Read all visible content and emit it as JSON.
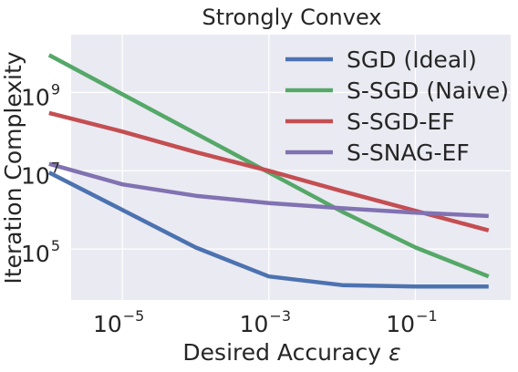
{
  "chart_data": {
    "type": "line",
    "title": "Strongly Convex",
    "xlabel": "Desired Accuracy",
    "xlabel_symbol": "ε",
    "ylabel": "Iteration Complexity",
    "xscale": "log",
    "yscale": "log",
    "xlim": [
      2e-06,
      2
    ],
    "ylim": [
      5000,
      30000000000
    ],
    "grid": true,
    "legend_position": "top-right",
    "x": [
      1e-06,
      1e-05,
      0.0001,
      0.001,
      0.01,
      0.1,
      1
    ],
    "xticks": [
      {
        "base": "10",
        "exp": "−5",
        "value": 1e-05
      },
      {
        "base": "10",
        "exp": "−3",
        "value": 0.001
      },
      {
        "base": "10",
        "exp": "−1",
        "value": 0.1
      }
    ],
    "yticks": [
      {
        "base": "10",
        "exp": "5",
        "value": 100000
      },
      {
        "base": "10",
        "exp": "7",
        "value": 10000000
      },
      {
        "base": "10",
        "exp": "9",
        "value": 1000000000
      }
    ],
    "series": [
      {
        "name": "SGD (Ideal)",
        "color": "#4c72b0",
        "values": [
          9000000,
          1000000,
          110000,
          20000,
          12000,
          11000,
          11000
        ]
      },
      {
        "name": "S-SGD (Naive)",
        "color": "#55a868",
        "values": [
          9000000000,
          900000000,
          90000000,
          9000000,
          900000,
          110000,
          20000
        ]
      },
      {
        "name": "S-SGD-EF",
        "color": "#c44e52",
        "values": [
          300000000,
          100000000,
          30000000,
          10000000,
          3000000,
          950000,
          300000
        ]
      },
      {
        "name": "S-SNAG-EF",
        "color": "#8172b2",
        "values": [
          15000000,
          4500000,
          2300000,
          1500000,
          1100000,
          850000,
          700000
        ]
      }
    ]
  }
}
